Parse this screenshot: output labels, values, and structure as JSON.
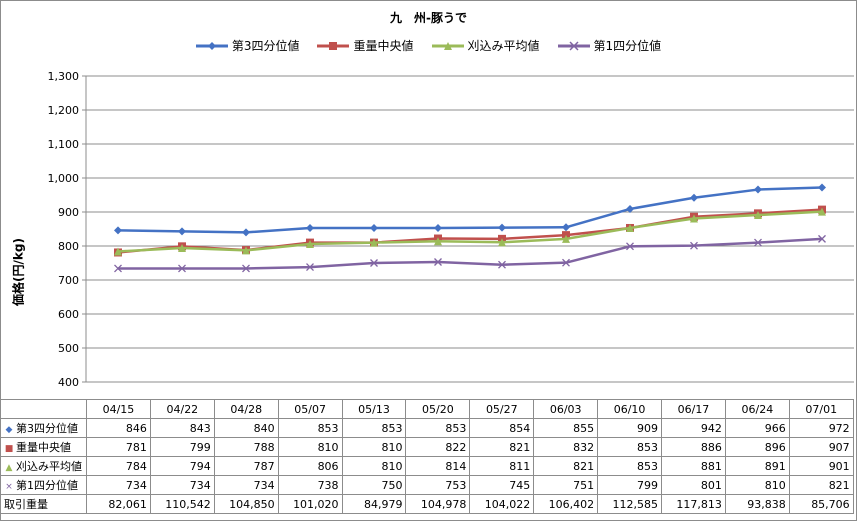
{
  "chart_data": {
    "type": "line",
    "title": "九　州-豚うで",
    "ylabel": "価格(円/kg)",
    "ylim": [
      400,
      1300
    ],
    "yticks": [
      400,
      500,
      600,
      700,
      800,
      900,
      1000,
      1100,
      1200,
      1300
    ],
    "ytick_labels": [
      "400",
      "500",
      "600",
      "700",
      "800",
      "900",
      "1,000",
      "1,100",
      "1,200",
      "1,300"
    ],
    "categories": [
      "04/15",
      "04/22",
      "04/28",
      "05/07",
      "05/13",
      "05/20",
      "05/27",
      "06/03",
      "06/10",
      "06/17",
      "06/24",
      "07/01"
    ],
    "grid": true,
    "legend_position": "top",
    "series": [
      {
        "name": "第3四分位値",
        "color": "#4472c4",
        "marker": "diamond",
        "values": [
          846,
          843,
          840,
          853,
          853,
          853,
          854,
          855,
          909,
          942,
          966,
          972
        ]
      },
      {
        "name": "重量中央値",
        "color": "#c0504d",
        "marker": "square",
        "values": [
          781,
          799,
          788,
          810,
          810,
          822,
          821,
          832,
          853,
          886,
          896,
          907
        ]
      },
      {
        "name": "刈込み平均値",
        "color": "#9bbb59",
        "marker": "triangle",
        "values": [
          784,
          794,
          787,
          806,
          810,
          814,
          811,
          821,
          853,
          881,
          891,
          901
        ]
      },
      {
        "name": "第1四分位値",
        "color": "#8064a2",
        "marker": "x",
        "values": [
          734,
          734,
          734,
          738,
          750,
          753,
          745,
          751,
          799,
          801,
          810,
          821
        ]
      }
    ],
    "table_extra_row": {
      "name": "取引重量",
      "values": [
        "82,061",
        "110,542",
        "104,850",
        "101,020",
        "84,979",
        "104,978",
        "104,022",
        "106,402",
        "112,585",
        "117,813",
        "93,838",
        "85,706"
      ]
    }
  },
  "table_rows": [
    {
      "label": "第3四分位値",
      "values": [
        "846",
        "843",
        "840",
        "853",
        "853",
        "853",
        "854",
        "855",
        "909",
        "942",
        "966",
        "972"
      ]
    },
    {
      "label": "重量中央値",
      "values": [
        "781",
        "799",
        "788",
        "810",
        "810",
        "822",
        "821",
        "832",
        "853",
        "886",
        "896",
        "907"
      ]
    },
    {
      "label": "刈込み平均値",
      "values": [
        "784",
        "794",
        "787",
        "806",
        "810",
        "814",
        "811",
        "821",
        "853",
        "881",
        "891",
        "901"
      ]
    },
    {
      "label": "第1四分位値",
      "values": [
        "734",
        "734",
        "734",
        "738",
        "750",
        "753",
        "745",
        "751",
        "799",
        "801",
        "810",
        "821"
      ]
    },
    {
      "label": "取引重量",
      "values": [
        "82,061",
        "110,542",
        "104,850",
        "101,020",
        "84,979",
        "104,978",
        "104,022",
        "106,402",
        "112,585",
        "117,813",
        "93,838",
        "85,706"
      ]
    }
  ]
}
